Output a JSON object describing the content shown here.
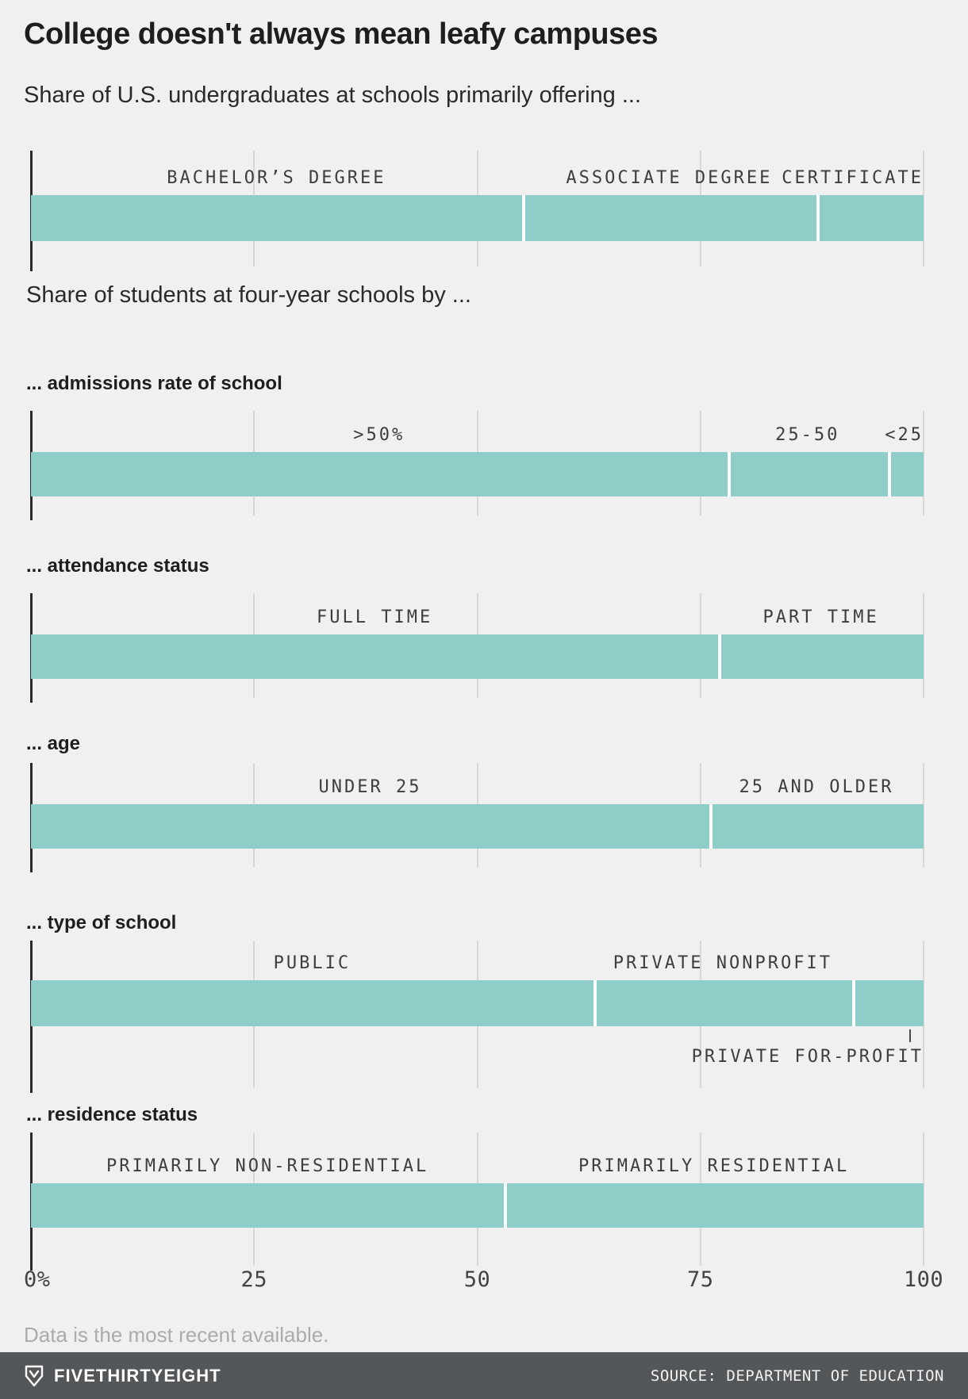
{
  "page": {
    "title": "College doesn't always mean leafy campuses",
    "subtitle": "Share of U.S. undergraduates at schools primarily offering ...",
    "section_heading": "Share of students at four-year schools by ...",
    "footnote": "Data is the most recent available."
  },
  "colors": {
    "background": "#f0f0f0",
    "bar_teal": "#8ecdc8",
    "gridline": "#d7d7d7",
    "axis_line": "#2b2b2b",
    "footer_background": "#54575a",
    "footer_text": "#ffffff"
  },
  "axis": {
    "min": 0,
    "max": 100,
    "gridlines": [
      25,
      50,
      75,
      100
    ],
    "tick_values": [
      0,
      25,
      50,
      75,
      100
    ],
    "tick_labels": [
      "0%",
      "25",
      "50",
      "75",
      "100"
    ]
  },
  "footer": {
    "brand": "FIVETHIRTYEIGHT",
    "logo_icon": "fivethirtyeight-fox-icon",
    "source": "SOURCE: DEPARTMENT OF EDUCATION"
  },
  "chart_data": [
    {
      "type": "bar",
      "orientation": "horizontal-stacked",
      "title": "Share of U.S. undergraduates at schools primarily offering ...",
      "unit": "percent",
      "xlim": [
        0,
        100
      ],
      "segments": [
        {
          "label": "BACHELOR’S DEGREE",
          "value": 55
        },
        {
          "label": "ASSOCIATE DEGREE",
          "value": 33
        },
        {
          "label": "CERTIFICATE",
          "value": 12,
          "align": "right"
        }
      ]
    },
    {
      "type": "bar",
      "orientation": "horizontal-stacked",
      "heading": "... admissions rate of school",
      "unit": "percent",
      "xlim": [
        0,
        100
      ],
      "segments": [
        {
          "label": ">50%",
          "value": 78
        },
        {
          "label": "25-50",
          "value": 18
        },
        {
          "label": "<25",
          "value": 4,
          "align": "right"
        }
      ]
    },
    {
      "type": "bar",
      "orientation": "horizontal-stacked",
      "heading": "... attendance status",
      "unit": "percent",
      "xlim": [
        0,
        100
      ],
      "segments": [
        {
          "label": "FULL TIME",
          "value": 77
        },
        {
          "label": "PART TIME",
          "value": 23
        }
      ]
    },
    {
      "type": "bar",
      "orientation": "horizontal-stacked",
      "heading": "... age",
      "unit": "percent",
      "xlim": [
        0,
        100
      ],
      "segments": [
        {
          "label": "UNDER 25",
          "value": 76
        },
        {
          "label": "25 AND OLDER",
          "value": 24
        }
      ]
    },
    {
      "type": "bar",
      "orientation": "horizontal-stacked",
      "heading": "... type of school",
      "unit": "percent",
      "xlim": [
        0,
        100
      ],
      "segments": [
        {
          "label": "PUBLIC",
          "value": 63
        },
        {
          "label": "PRIVATE NONPROFIT",
          "value": 29
        },
        {
          "label": "PRIVATE FOR-PROFIT",
          "value": 8,
          "align": "right",
          "position": "below",
          "callout_x": 98.5
        }
      ]
    },
    {
      "type": "bar",
      "orientation": "horizontal-stacked",
      "heading": "... residence status",
      "unit": "percent",
      "xlim": [
        0,
        100
      ],
      "segments": [
        {
          "label": "PRIMARILY NON-RESIDENTIAL",
          "value": 53
        },
        {
          "label": "PRIMARILY RESIDENTIAL",
          "value": 47
        }
      ]
    }
  ]
}
